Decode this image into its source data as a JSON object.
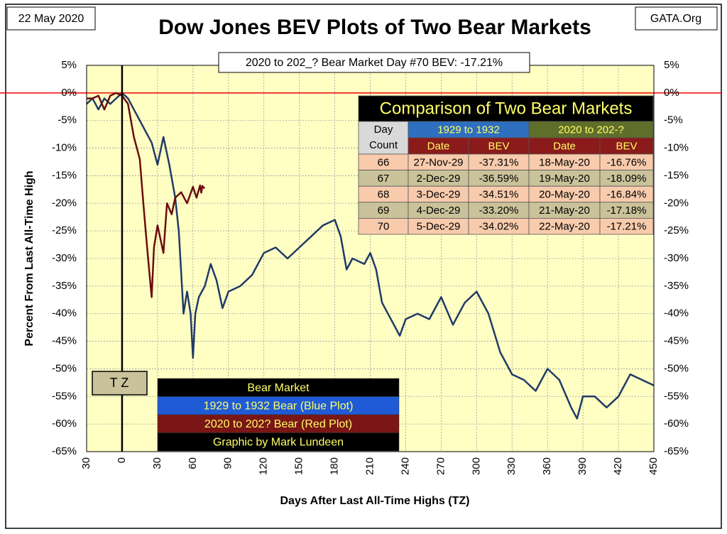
{
  "chart_data": {
    "type": "line",
    "title": "Dow Jones BEV Plots of Two Bear Markets",
    "subtitle": "2020 to 202_? Bear Market Day #70 BEV: -17.21%",
    "date_label": "22 May 2020",
    "source": "GATA.Org",
    "x_label": "Days After Last All-Time Highs (TZ)",
    "y_label": "Percent  From  Last  All-Time  High",
    "xlim": [
      -30,
      450
    ],
    "ylim": [
      -65,
      5
    ],
    "xticks": [
      {
        "value": -30,
        "label": "30"
      },
      0,
      30,
      60,
      90,
      120,
      150,
      180,
      210,
      240,
      270,
      300,
      330,
      360,
      390,
      420,
      450
    ],
    "yticks": [
      {
        "value": 5,
        "label": "5%"
      },
      {
        "value": 0,
        "label": "0%"
      },
      {
        "value": -5,
        "label": "-5%"
      },
      {
        "value": -10,
        "label": "-10%"
      },
      {
        "value": -15,
        "label": "-15%"
      },
      {
        "value": -20,
        "label": "-20%"
      },
      {
        "value": -25,
        "label": "-25%"
      },
      {
        "value": -30,
        "label": "-30%"
      },
      {
        "value": -35,
        "label": "-35%"
      },
      {
        "value": -40,
        "label": "-40%"
      },
      {
        "value": -45,
        "label": "-45%"
      },
      {
        "value": -50,
        "label": "-50%"
      },
      {
        "value": -55,
        "label": "-55%"
      },
      {
        "value": -60,
        "label": "-60%"
      },
      {
        "value": -65,
        "label": "-65%"
      }
    ],
    "grid": true,
    "reference_lines": {
      "x": 0,
      "y": 0
    },
    "annotations": [
      "T Z"
    ],
    "legend_title": "Bear Market",
    "credit": "Graphic by Mark Lundeen",
    "series": [
      {
        "name": "1929 to 1932 Bear (Blue Plot)",
        "color": "#203a66",
        "legend_fill": "#1f5bd6",
        "x": [
          -30,
          -25,
          -20,
          -15,
          -10,
          -5,
          0,
          5,
          10,
          15,
          20,
          25,
          30,
          35,
          40,
          45,
          48,
          52,
          55,
          58,
          60,
          62,
          65,
          70,
          75,
          80,
          85,
          90,
          100,
          110,
          120,
          130,
          140,
          150,
          160,
          170,
          180,
          185,
          190,
          195,
          205,
          210,
          215,
          220,
          230,
          235,
          240,
          250,
          260,
          270,
          280,
          290,
          300,
          310,
          320,
          330,
          340,
          350,
          360,
          370,
          380,
          385,
          390,
          400,
          410,
          420,
          430,
          440,
          450
        ],
        "values": [
          -2,
          -1,
          -3,
          -1,
          -2,
          -1,
          0,
          -1,
          -3,
          -5,
          -7,
          -9,
          -13,
          -8,
          -13,
          -19,
          -25,
          -40,
          -36,
          -40,
          -48,
          -40,
          -37,
          -35,
          -31,
          -34,
          -39,
          -36,
          -35,
          -33,
          -29,
          -28,
          -30,
          -28,
          -26,
          -24,
          -23,
          -26,
          -32,
          -30,
          -31,
          -29,
          -32,
          -38,
          -42,
          -44,
          -41,
          -40,
          -41,
          -37,
          -42,
          -38,
          -36,
          -40,
          -47,
          -51,
          -52,
          -54,
          -50,
          -52,
          -57,
          -59,
          -55,
          -55,
          -57,
          -55,
          -51,
          -52,
          -53
        ]
      },
      {
        "name": "2020 to 202? Bear (Red Plot)",
        "color": "#6b0c0c",
        "legend_fill": "#7a1616",
        "x": [
          -30,
          -25,
          -20,
          -15,
          -10,
          -5,
          0,
          5,
          10,
          15,
          18,
          20,
          22,
          25,
          27,
          30,
          35,
          38,
          42,
          45,
          50,
          55,
          60,
          63,
          66,
          67,
          68,
          69,
          70
        ],
        "values": [
          -1,
          -1,
          -0.5,
          -3,
          -0.5,
          0,
          -0.5,
          -2,
          -8,
          -12,
          -20,
          -25,
          -30,
          -37,
          -28,
          -24,
          -29,
          -20,
          -22,
          -19,
          -18,
          -20,
          -17,
          -19,
          -16.76,
          -18.09,
          -16.84,
          -17.18,
          -17.21
        ]
      }
    ],
    "table": {
      "title": "Comparison of Two Bear Markets",
      "day_header": [
        "Day",
        "Count"
      ],
      "groups": [
        "1929 to 1932",
        "2020 to 202-?"
      ],
      "subheaders": [
        "Date",
        "BEV",
        "Date",
        "BEV"
      ],
      "rows": [
        [
          66,
          "27-Nov-29",
          "-37.31%",
          "18-May-20",
          "-16.76%"
        ],
        [
          67,
          "2-Dec-29",
          "-36.59%",
          "19-May-20",
          "-18.09%"
        ],
        [
          68,
          "3-Dec-29",
          "-34.51%",
          "20-May-20",
          "-16.84%"
        ],
        [
          69,
          "4-Dec-29",
          "-33.20%",
          "21-May-20",
          "-17.18%"
        ],
        [
          70,
          "5-Dec-29",
          "-34.02%",
          "22-May-20",
          "-17.21%"
        ]
      ]
    }
  }
}
